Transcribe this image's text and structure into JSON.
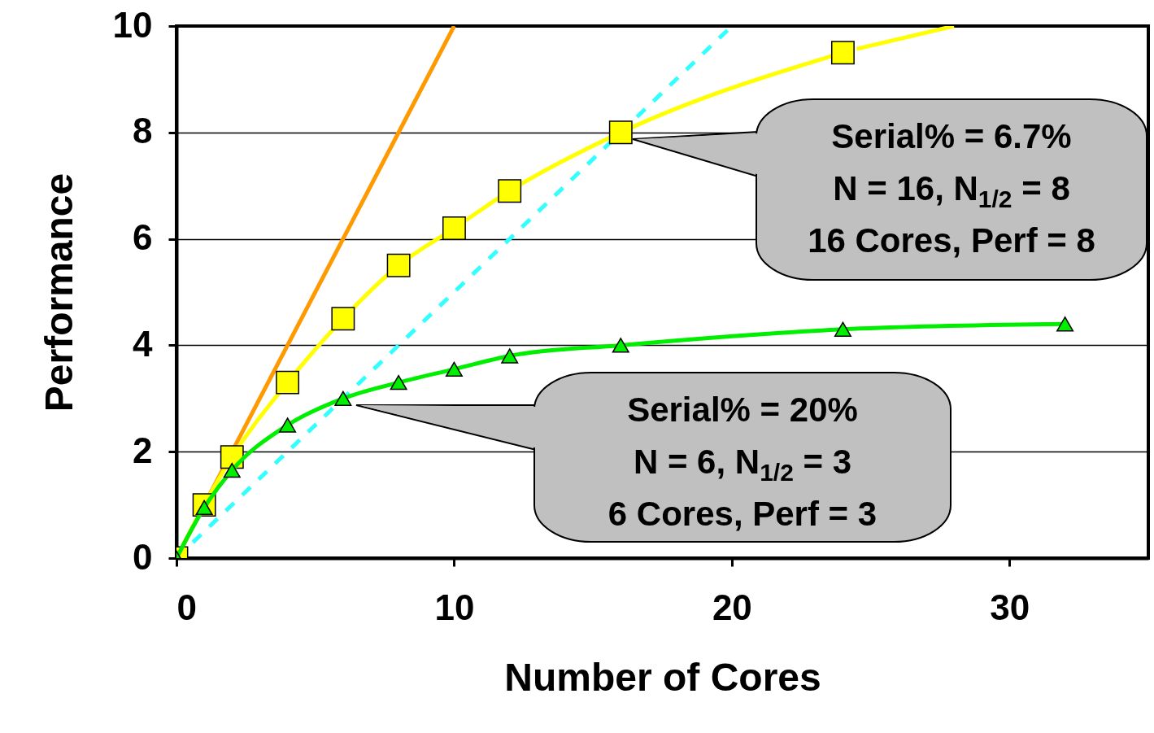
{
  "chart_data": {
    "type": "line",
    "xlabel": "Number of Cores",
    "ylabel": "Performance",
    "xlim": [
      0,
      35
    ],
    "xticks": [
      0,
      10,
      20,
      30
    ],
    "ylim": [
      0,
      10
    ],
    "yticks": [
      0,
      2,
      4,
      6,
      8,
      10
    ],
    "grid": "y",
    "series": [
      {
        "color": "#ff9900",
        "x": [
          0,
          10
        ],
        "values": [
          0,
          10
        ],
        "marker": "none",
        "line_style": "solid"
      },
      {
        "color": "#33ffff",
        "x": [
          0,
          20
        ],
        "values": [
          0,
          10
        ],
        "marker": "none",
        "line_style": "dashed"
      },
      {
        "color": "#ffff00",
        "x": [
          0,
          1,
          2,
          4,
          6,
          8,
          10,
          12,
          16,
          24
        ],
        "values": [
          0,
          1,
          1.9,
          3.3,
          4.5,
          5.5,
          6.2,
          6.9,
          8,
          9.5
        ],
        "marker": "square",
        "line_style": "solid"
      },
      {
        "color": "#ffff00",
        "x": [
          24.5,
          28
        ],
        "values": [
          9.57,
          10
        ],
        "marker": "none",
        "line_style": "solid"
      },
      {
        "color": "#00ee00",
        "x": [
          0,
          1,
          2,
          4,
          6,
          8,
          10,
          12,
          16,
          24,
          32
        ],
        "values": [
          0,
          0.95,
          1.65,
          2.5,
          3,
          3.3,
          3.55,
          3.8,
          4,
          4.3,
          4.4
        ],
        "marker": "triangle",
        "line_style": "solid"
      }
    ],
    "annotations": [
      "Serial% = 6.7%\nN = 16, N$_{1/2}$ = 8\n16 Cores, Perf = 8",
      "Serial% = 20%\nN = 6, N$_{1/2}$ = 3\n6 Cores, Perf = 3"
    ]
  }
}
